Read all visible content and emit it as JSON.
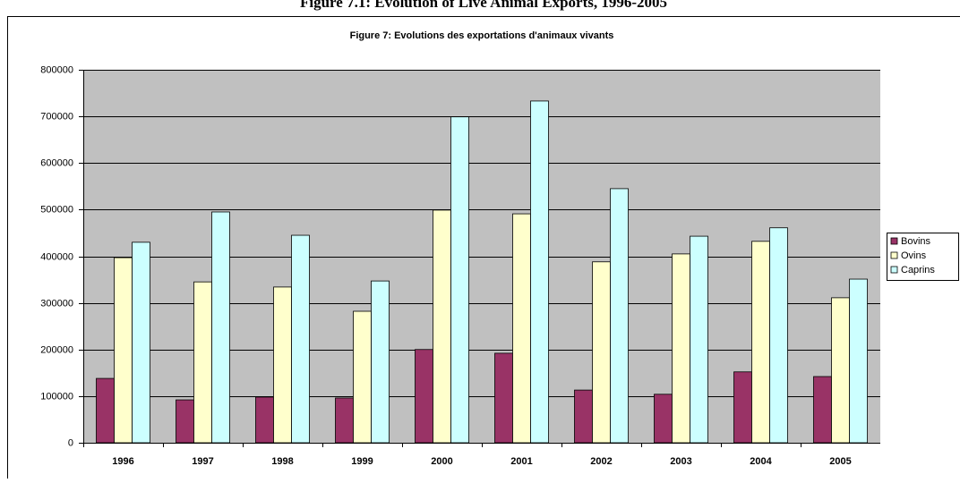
{
  "chart_data": {
    "type": "bar",
    "page_title": "Figure 7.1: Evolution of Live Animal Exports, 1996-2005",
    "title": "Figure 7: Evolutions des exportations d'animaux vivants",
    "categories": [
      "1996",
      "1997",
      "1998",
      "1999",
      "2000",
      "2001",
      "2002",
      "2003",
      "2004",
      "2005"
    ],
    "series": [
      {
        "name": "Bovins",
        "color": "#993366",
        "values": [
          138000,
          92000,
          98000,
          96000,
          200000,
          192000,
          113000,
          104000,
          152000,
          142000
        ]
      },
      {
        "name": "Ovins",
        "color": "#ffffcc",
        "values": [
          397000,
          345000,
          334000,
          282000,
          499000,
          491000,
          388000,
          405000,
          432000,
          311000
        ]
      },
      {
        "name": "Caprins",
        "color": "#ccffff",
        "values": [
          430000,
          495000,
          445000,
          347000,
          699000,
          733000,
          545000,
          443000,
          461000,
          351000
        ]
      }
    ],
    "ylim": [
      0,
      800000
    ],
    "yticks": [
      0,
      100000,
      200000,
      300000,
      400000,
      500000,
      600000,
      700000,
      800000
    ],
    "grid": true,
    "legend": "right"
  }
}
